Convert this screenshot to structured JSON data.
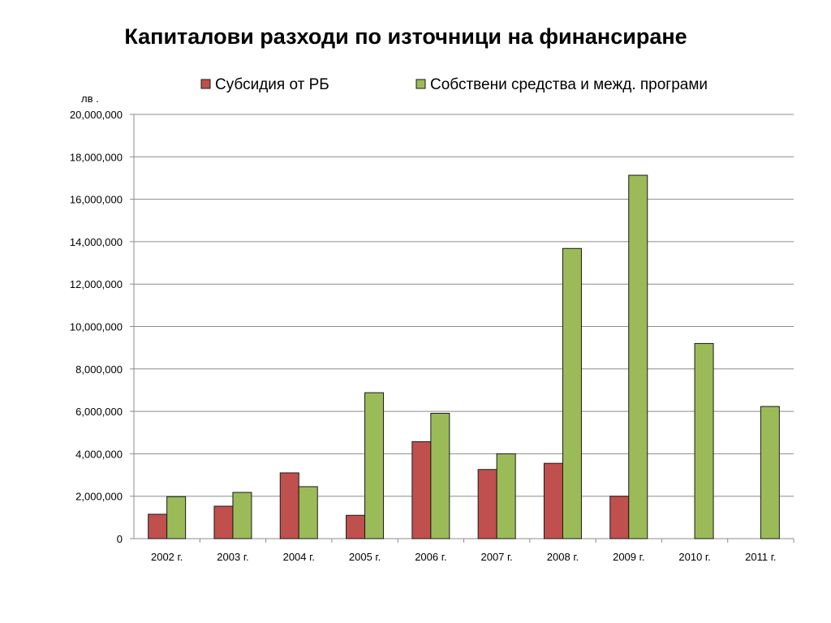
{
  "chart_data": {
    "type": "bar",
    "title": "Капиталови разходи по източници на финансиране",
    "ylabel": "лв .",
    "xlabel": "",
    "ylim": [
      0,
      20000000
    ],
    "y_ticks": [
      "0",
      "2,000,000",
      "4,000,000",
      "6,000,000",
      "8,000,000",
      "10,000,000",
      "12,000,000",
      "14,000,000",
      "16,000,000",
      "18,000,000",
      "20,000,000"
    ],
    "grid": true,
    "legend_position": "top",
    "categories": [
      "2002 г.",
      "2003 г.",
      "2004 г.",
      "2005 г.",
      "2006 г.",
      "2007 г.",
      "2008 г.",
      "2009 г.",
      "2010 г.",
      "2011 г."
    ],
    "series": [
      {
        "name": "Субсидия от РБ",
        "color": "#c0504d",
        "values": [
          1150000,
          1530000,
          3100000,
          1100000,
          4570000,
          3260000,
          3550000,
          2000000,
          0,
          0
        ]
      },
      {
        "name": "Собствени средства и межд. програми",
        "color": "#9bbb59",
        "values": [
          1980000,
          2180000,
          2450000,
          6880000,
          5910000,
          4000000,
          13680000,
          17130000,
          9200000,
          6230000
        ]
      }
    ]
  }
}
